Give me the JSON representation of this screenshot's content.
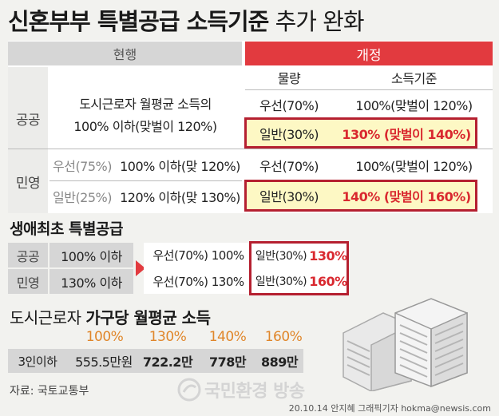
{
  "title": {
    "bold": "신혼부부 특별공급 소득기준",
    "light": " 추가 완화"
  },
  "table": {
    "current_header": "현행",
    "revised_header": "개정",
    "col_amount": "물량",
    "col_income": "소득기준",
    "public_label": "공공",
    "private_label": "민영",
    "public_current_line1": "도시근로자 월평균 소득의",
    "public_current_line2": "100% 이하(맞벌이 120%)",
    "public_rows": [
      {
        "amount": "우선(70%)",
        "income": "100%(맞벌이 120%)"
      },
      {
        "amount": "일반(30%)",
        "income": "130% (맞벌이 140%)"
      }
    ],
    "private_current": [
      {
        "type": "우선(75%)",
        "income": "100% 이하(맞 120%)"
      },
      {
        "type": "일반(25%)",
        "income": "120% 이하(맞 130%)"
      }
    ],
    "private_rows": [
      {
        "amount": "우선(70%)",
        "income": "100%(맞벌이 120%)"
      },
      {
        "amount": "일반(30%)",
        "income": "140% (맞벌이 160%)"
      }
    ]
  },
  "first_time": {
    "title": "생애최초 특별공급",
    "rows": [
      {
        "label": "공공",
        "current": "100% 이하",
        "priority": "우선(70%) 100%",
        "general_label": "일반(30%)",
        "general_value": "130%"
      },
      {
        "label": "민영",
        "current": "130% 이하",
        "priority": "우선(70%) 130%",
        "general_label": "일반(30%)",
        "general_value": "160%"
      }
    ]
  },
  "income": {
    "title_light": "도시근로자 ",
    "title_bold": "가구당 월평균 소득",
    "headers": [
      "100%",
      "130%",
      "140%",
      "160%"
    ],
    "row_label": "3인이하",
    "values": [
      "555.5만원",
      "722.2만",
      "778만",
      "889만"
    ]
  },
  "footer": {
    "source": "자료: 국토교통부",
    "watermark": "국민환경 방송",
    "credit": "20.10.14 안지혜 그래픽기자  hokma@newsis.com"
  },
  "colors": {
    "accent_red": "#e23a3f",
    "highlight_yellow": "#fdf8c4",
    "orange": "#e0862a"
  },
  "icons": [
    "building-illustration",
    "arrow-right-icon",
    "logo-icon"
  ]
}
